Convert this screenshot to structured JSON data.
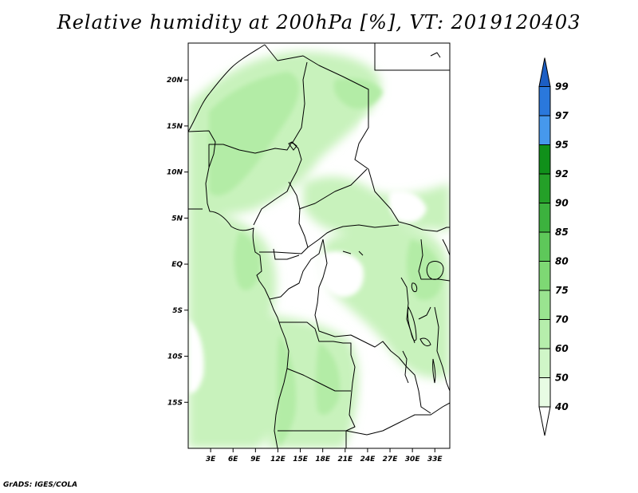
{
  "title": "Relative humidity at 200hPa [%], VT: 2019120403",
  "credit": "GrADS: IGES/COLA",
  "map": {
    "lon_range": [
      0,
      35
    ],
    "lat_range": [
      -20,
      24
    ],
    "x_ticks": [
      "3E",
      "6E",
      "9E",
      "12E",
      "15E",
      "18E",
      "21E",
      "24E",
      "27E",
      "30E",
      "33E"
    ],
    "x_tick_values": [
      3,
      6,
      9,
      12,
      15,
      18,
      21,
      24,
      27,
      30,
      33
    ],
    "y_ticks": [
      "20N",
      "15N",
      "10N",
      "5N",
      "EQ",
      "5S",
      "10S",
      "15S"
    ],
    "y_tick_values": [
      20,
      15,
      10,
      5,
      0,
      -5,
      -10,
      -15
    ]
  },
  "colorbar": {
    "labels": [
      "40",
      "50",
      "60",
      "70",
      "75",
      "80",
      "85",
      "90",
      "92",
      "95",
      "97",
      "99"
    ],
    "colors": [
      "#ffffff",
      "#e8fce4",
      "#d0f6c8",
      "#b6eeac",
      "#9ae490",
      "#7ed874",
      "#5ec85a",
      "#3cb23e",
      "#24a028",
      "#10901a",
      "#4698ec",
      "#2a78dc",
      "#1c5ec4"
    ]
  }
}
